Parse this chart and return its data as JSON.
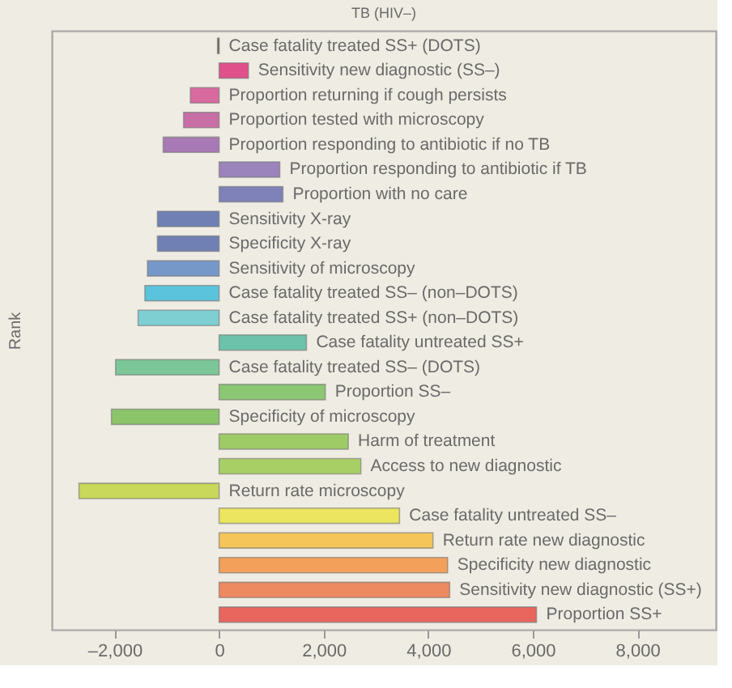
{
  "chart_data": {
    "type": "bar",
    "orientation": "horizontal",
    "title": "TB (HIV–)",
    "ylabel": "Rank",
    "categories": [
      "Case fatality treated SS+ (DOTS)",
      "Sensitivity new diagnostic (SS–)",
      "Proportion returning if cough persists",
      "Proportion tested with microscopy",
      "Proportion responding to antibiotic if no TB",
      "Proportion responding to antibiotic if TB",
      "Proportion with no care",
      "Sensitivity X-ray",
      "Specificity X-ray",
      "Sensitivity of microscopy",
      "Case fatality treated SS–  (non–DOTS)",
      "Case fatality treated SS+ (non–DOTS)",
      "Case fatality untreated SS+",
      "Case fatality treated SS– (DOTS)",
      "Proportion SS–",
      "Specificity of microscopy",
      "Harm of treatment",
      "Access to new diagnostic",
      "Return rate microscopy",
      "Case fatality untreated SS–",
      "Return rate new diagnostic",
      "Specificity new diagnostic",
      "Sensitivity new diagnostic (SS+)",
      "Proportion SS+"
    ],
    "values": [
      -30,
      560,
      -550,
      -680,
      -1070,
      1160,
      1220,
      -1180,
      -1180,
      -1370,
      -1420,
      -1550,
      1670,
      -1980,
      2030,
      -2060,
      2470,
      2710,
      -2680,
      3450,
      4090,
      4370,
      4410,
      6070
    ],
    "colors": [
      "#555555",
      "#e0508a",
      "#d96aa0",
      "#c86fa6",
      "#a77ab5",
      "#9b84bb",
      "#7f82b8",
      "#7080b5",
      "#7080b5",
      "#7598c8",
      "#5bc4dc",
      "#7dcfd2",
      "#6cc2aa",
      "#7cc79a",
      "#8cc774",
      "#8cc46a",
      "#9fcb66",
      "#a8cf66",
      "#c9d75a",
      "#ece560",
      "#f5c55a",
      "#f2a05a",
      "#ee8a60",
      "#e8665e"
    ],
    "xlim": [
      -3200,
      9500
    ],
    "xticks": [
      {
        "value": -2000,
        "label": "–2,000"
      },
      0,
      {
        "value": 2000,
        "label": "2,000"
      },
      {
        "value": 4000,
        "label": "4,000"
      },
      {
        "value": 6000,
        "label": "6,000"
      },
      {
        "value": 8000,
        "label": "8,000"
      }
    ],
    "grid": false,
    "legend": false,
    "tick_labels": "x"
  }
}
